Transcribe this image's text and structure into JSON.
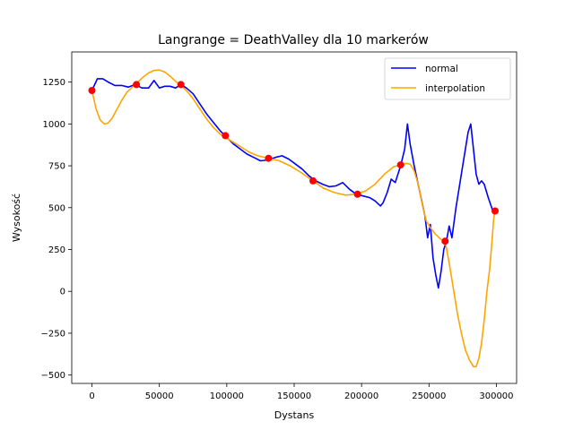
{
  "chart_data": {
    "type": "line",
    "title": "Langrange = DeathValley dla 10 markerów",
    "xlabel": "Dystans",
    "ylabel": "Wysokość",
    "xlim": [
      -15000,
      315000
    ],
    "ylim": [
      -550,
      1430
    ],
    "xticks": [
      0,
      50000,
      100000,
      150000,
      200000,
      250000,
      300000
    ],
    "xtick_labels": [
      "0",
      "50000",
      "100000",
      "150000",
      "200000",
      "250000",
      "300000"
    ],
    "yticks": [
      -500,
      -250,
      0,
      250,
      500,
      750,
      1000,
      1250
    ],
    "ytick_labels": [
      "−500",
      "−250",
      "0",
      "250",
      "500",
      "750",
      "1000",
      "1250"
    ],
    "grid": false,
    "legend_position": "top-right",
    "colors": {
      "normal": "#0000ff",
      "interpolation": "#ffa500",
      "markers": "#ff0000"
    },
    "series": [
      {
        "name": "normal",
        "x": [
          0,
          4000,
          8000,
          12000,
          17000,
          22000,
          27000,
          32000,
          37000,
          42000,
          46000,
          50000,
          54000,
          58000,
          62000,
          66000,
          70000,
          75000,
          80000,
          85000,
          90000,
          95000,
          100000,
          105000,
          110000,
          115000,
          120000,
          125000,
          131000,
          136000,
          141000,
          146000,
          151000,
          156000,
          161000,
          166000,
          171000,
          176000,
          181000,
          186000,
          191000,
          196000,
          201000,
          206000,
          210000,
          214000,
          216000,
          219000,
          222000,
          225000,
          229000,
          232000,
          234000,
          236000,
          239000,
          243000,
          247000,
          249000,
          251000,
          253000,
          255000,
          257000,
          259000,
          261000,
          263000,
          265000,
          267000,
          270000,
          273000,
          276000,
          279000,
          281000,
          283000,
          285000,
          287000,
          289000,
          291000,
          294000,
          297000,
          299000
        ],
        "y": [
          1200,
          1270,
          1270,
          1250,
          1230,
          1230,
          1220,
          1235,
          1215,
          1215,
          1260,
          1215,
          1225,
          1225,
          1215,
          1235,
          1215,
          1180,
          1120,
          1060,
          1010,
          960,
          920,
          880,
          850,
          820,
          800,
          780,
          785,
          800,
          810,
          790,
          760,
          730,
          690,
          660,
          640,
          625,
          630,
          650,
          610,
          580,
          570,
          560,
          540,
          510,
          530,
          590,
          670,
          650,
          750,
          850,
          1000,
          880,
          750,
          600,
          450,
          320,
          400,
          200,
          100,
          20,
          120,
          250,
          300,
          390,
          320,
          500,
          650,
          800,
          950,
          1000,
          850,
          700,
          640,
          660,
          640,
          560,
          490,
          480
        ]
      },
      {
        "name": "interpolation",
        "x": [
          0,
          3000,
          6000,
          9000,
          12000,
          15000,
          18000,
          22000,
          26000,
          30000,
          34000,
          38000,
          42000,
          46000,
          50000,
          54000,
          58000,
          62000,
          66000,
          70000,
          75000,
          80000,
          85000,
          90000,
          95000,
          99000,
          105000,
          111000,
          117000,
          123000,
          131000,
          139000,
          147000,
          155000,
          164000,
          172000,
          180000,
          188000,
          196000,
          203000,
          210000,
          217000,
          224000,
          229000,
          233000,
          236000,
          239000,
          242000,
          245000,
          248000,
          251000,
          255000,
          259000,
          262000,
          265000,
          268000,
          271000,
          274000,
          277000,
          280000,
          283000,
          285000,
          287000,
          289000,
          291000,
          293000,
          295000,
          297000,
          298000,
          299000
        ],
        "y": [
          1200,
          1090,
          1025,
          1000,
          1005,
          1035,
          1080,
          1140,
          1190,
          1220,
          1250,
          1280,
          1305,
          1320,
          1322,
          1310,
          1285,
          1255,
          1230,
          1200,
          1150,
          1090,
          1030,
          980,
          940,
          920,
          890,
          860,
          830,
          810,
          795,
          780,
          750,
          710,
          660,
          615,
          590,
          575,
          580,
          600,
          640,
          700,
          745,
          755,
          765,
          760,
          720,
          640,
          520,
          420,
          380,
          340,
          310,
          300,
          170,
          20,
          -130,
          -250,
          -350,
          -410,
          -450,
          -450,
          -400,
          -310,
          -170,
          0,
          130,
          320,
          430,
          490
        ]
      }
    ],
    "markers": {
      "name": "markers",
      "x": [
        0,
        33000,
        66000,
        99000,
        131000,
        164000,
        197000,
        229000,
        262000,
        299000
      ],
      "y": [
        1200,
        1235,
        1235,
        930,
        795,
        660,
        580,
        755,
        300,
        480
      ]
    }
  }
}
